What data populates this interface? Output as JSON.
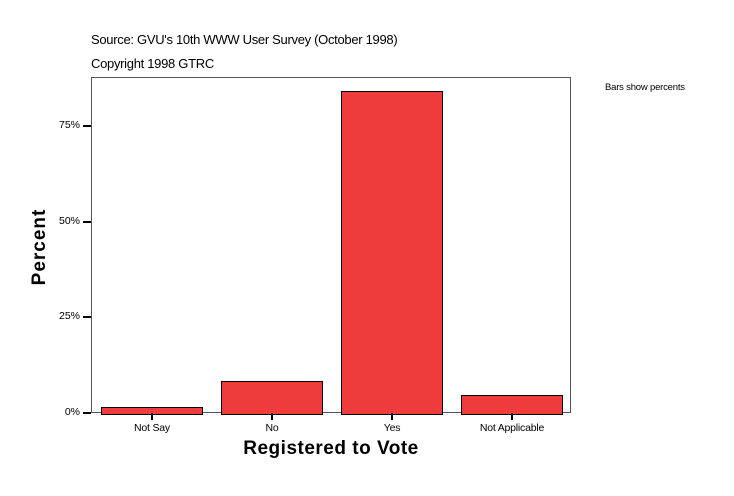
{
  "header": {
    "source": "Source: GVU's 10th WWW User Survey (October 1998)",
    "copyright": "Copyright 1998 GTRC",
    "note": "Bars show percents"
  },
  "axes": {
    "x_title": "Registered to Vote",
    "y_title": "Percent",
    "y_ticks": [
      "0%",
      "25%",
      "50%",
      "75%"
    ]
  },
  "colors": {
    "bar": "#ee3b3b",
    "bar_border": "#000000"
  },
  "chart_data": {
    "type": "bar",
    "title": "",
    "subtitle": "Source: GVU's 10th WWW User Survey (October 1998) / Copyright 1998 GTRC",
    "categories": [
      "Not Say",
      "No",
      "Yes",
      "Not Applicable"
    ],
    "values": [
      1.8,
      8.6,
      84.3,
      5.0
    ],
    "xlabel": "Registered to Vote",
    "ylabel": "Percent",
    "ylim": [
      0,
      88
    ],
    "yticks": [
      0,
      25,
      50,
      75
    ],
    "ytick_labels": [
      "0%",
      "25%",
      "50%",
      "75%"
    ],
    "grid": false,
    "legend": null,
    "annotation": "Bars show percents"
  }
}
